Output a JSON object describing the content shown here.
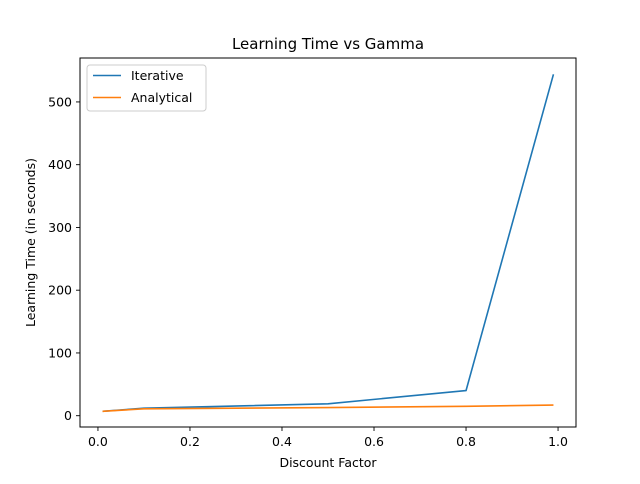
{
  "chart_data": {
    "type": "line",
    "title": "Learning Time vs Gamma",
    "xlabel": "Discount Factor",
    "ylabel": "Learning Time (in seconds)",
    "xlim": [
      -0.039,
      1.039
    ],
    "ylim": [
      -18,
      570
    ],
    "xticks": [
      0.0,
      0.2,
      0.4,
      0.6,
      0.8,
      1.0
    ],
    "xtick_labels": [
      "0.0",
      "0.2",
      "0.4",
      "0.6",
      "0.8",
      "1.0"
    ],
    "yticks": [
      0,
      100,
      200,
      300,
      400,
      500
    ],
    "ytick_labels": [
      "0",
      "100",
      "200",
      "300",
      "400",
      "500"
    ],
    "grid": false,
    "legend_position": "top-left",
    "series": [
      {
        "name": "Iterative",
        "color": "#1f77b4",
        "x": [
          0.01,
          0.1,
          0.5,
          0.8,
          0.99
        ],
        "y": [
          7,
          12,
          19,
          40,
          544
        ]
      },
      {
        "name": "Analytical",
        "color": "#ff7f0e",
        "x": [
          0.01,
          0.1,
          0.5,
          0.8,
          0.99
        ],
        "y": [
          7,
          11,
          13,
          15,
          17
        ]
      }
    ]
  }
}
